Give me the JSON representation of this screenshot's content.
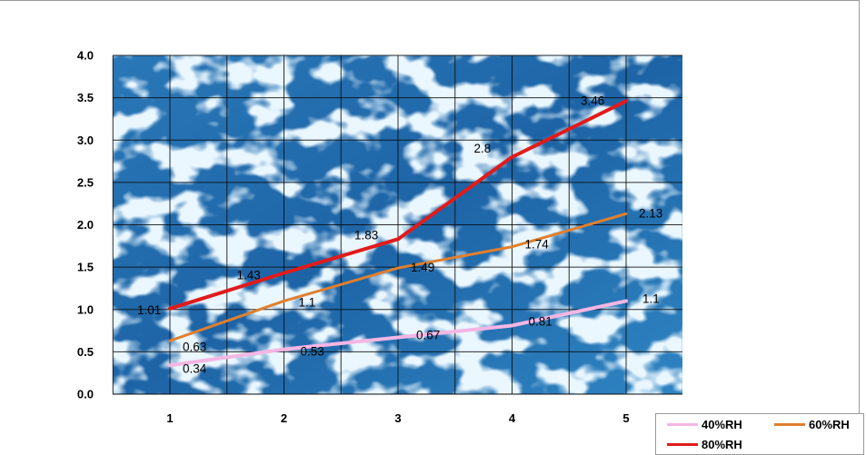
{
  "chart_data": {
    "type": "line",
    "title": "",
    "xlabel": "",
    "ylabel": "",
    "categories": [
      "1",
      "2",
      "3",
      "4",
      "5"
    ],
    "x": [
      1,
      2,
      3,
      4,
      5
    ],
    "ylim": [
      0,
      4
    ],
    "yticks": [
      "0.0",
      "0.5",
      "1.0",
      "1.5",
      "2.0",
      "2.5",
      "3.0",
      "3.5",
      "4.0"
    ],
    "grid": true,
    "plot_background": "rippled blue water photo texture",
    "legend_position": "bottom-right",
    "series": [
      {
        "name": "40%RH",
        "color": "#f4b6e4",
        "values": [
          0.34,
          0.53,
          0.67,
          0.81,
          1.1
        ],
        "labels": [
          "0.34",
          "0.53",
          "0.67",
          "0.81",
          "1.1"
        ]
      },
      {
        "name": "60%RH",
        "color": "#e07f2e",
        "values": [
          0.63,
          1.1,
          1.49,
          1.74,
          2.13
        ],
        "labels": [
          "0.63",
          "1.1",
          "1.49",
          "1.74",
          "2.13"
        ]
      },
      {
        "name": "80%RH",
        "color": "#e11b1b",
        "values": [
          1.01,
          1.43,
          1.83,
          2.8,
          3.46
        ],
        "labels": [
          "1.01",
          "1.43",
          "1.83",
          "2.8",
          "3.46"
        ]
      }
    ]
  }
}
